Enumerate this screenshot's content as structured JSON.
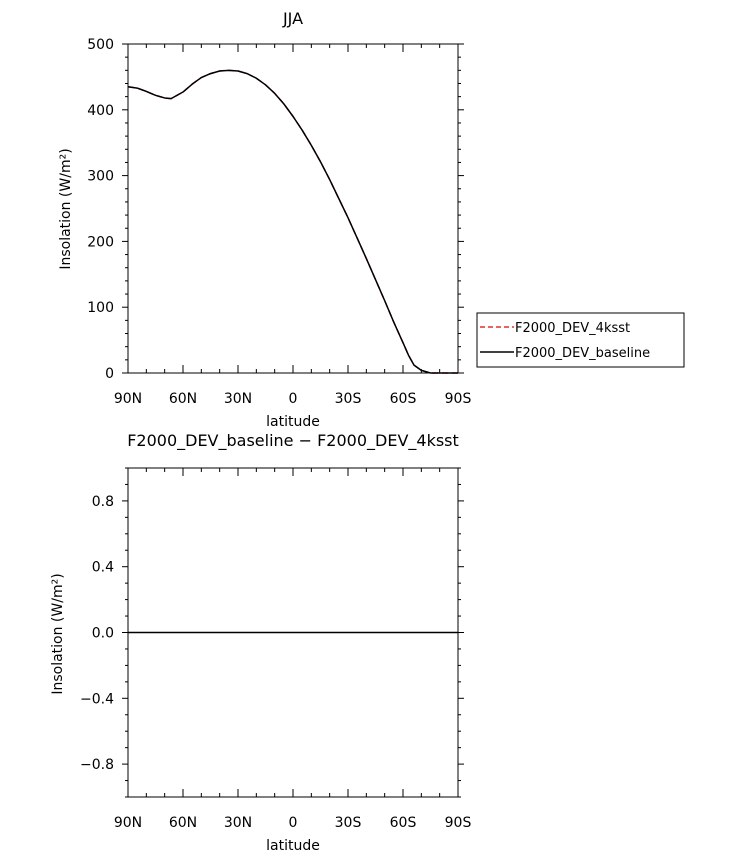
{
  "chart_data": [
    {
      "type": "line",
      "title": "JJA",
      "xlabel": "latitude",
      "ylabel": "Insolation (W/m²)",
      "x_ticks": [
        90,
        60,
        30,
        0,
        -30,
        -60,
        -90
      ],
      "x_tick_labels": [
        "90N",
        "60N",
        "30N",
        "0",
        "30S",
        "60S",
        "90S"
      ],
      "ylim": [
        0,
        500
      ],
      "y_ticks": [
        0,
        100,
        200,
        300,
        400,
        500
      ],
      "y_tick_labels": [
        "0",
        "100",
        "200",
        "300",
        "400",
        "500"
      ],
      "legend_position": "right",
      "series": [
        {
          "name": "F2000_DEV_4ksst",
          "color": "#e03030",
          "dash": "dashed",
          "x": [
            90,
            85,
            80,
            75,
            70,
            66.5,
            60,
            55,
            50,
            45,
            40,
            35,
            30,
            25,
            20,
            15,
            10,
            5,
            0,
            -5,
            -10,
            -15,
            -20,
            -25,
            -30,
            -35,
            -40,
            -45,
            -50,
            -55,
            -60,
            -63,
            -66,
            -70,
            -75,
            -80,
            -85,
            -90
          ],
          "y": [
            435,
            433,
            428,
            422,
            418,
            417,
            427,
            439,
            449,
            455,
            459,
            460,
            459,
            455,
            448,
            438,
            425,
            409,
            390,
            369,
            346,
            321,
            294,
            265,
            236,
            205,
            174,
            142,
            110,
            77,
            46,
            27,
            12,
            4,
            0,
            0,
            0,
            0
          ]
        },
        {
          "name": "F2000_DEV_baseline",
          "color": "#000000",
          "dash": "solid",
          "x": [
            90,
            85,
            80,
            75,
            70,
            66.5,
            60,
            55,
            50,
            45,
            40,
            35,
            30,
            25,
            20,
            15,
            10,
            5,
            0,
            -5,
            -10,
            -15,
            -20,
            -25,
            -30,
            -35,
            -40,
            -45,
            -50,
            -55,
            -60,
            -63,
            -66,
            -70,
            -75,
            -80,
            -85,
            -90
          ],
          "y": [
            435,
            433,
            428,
            422,
            418,
            417,
            427,
            439,
            449,
            455,
            459,
            460,
            459,
            455,
            448,
            438,
            425,
            409,
            390,
            369,
            346,
            321,
            294,
            265,
            236,
            205,
            174,
            142,
            110,
            77,
            46,
            27,
            12,
            4,
            0,
            0,
            0,
            0
          ]
        }
      ]
    },
    {
      "type": "line",
      "title": "F2000_DEV_baseline − F2000_DEV_4ksst",
      "xlabel": "latitude",
      "ylabel": "Insolation (W/m²)",
      "x_ticks": [
        90,
        60,
        30,
        0,
        -30,
        -60,
        -90
      ],
      "x_tick_labels": [
        "90N",
        "60N",
        "30N",
        "0",
        "30S",
        "60S",
        "90S"
      ],
      "ylim": [
        -1,
        1
      ],
      "y_ticks": [
        -0.8,
        -0.4,
        0.0,
        0.4,
        0.8
      ],
      "y_tick_labels": [
        "−0.8",
        "−0.4",
        "0.0",
        "0.4",
        "0.8"
      ],
      "series": [
        {
          "color": "#000000",
          "dash": "solid",
          "x": [
            90,
            -90
          ],
          "y": [
            0,
            0
          ]
        }
      ]
    }
  ]
}
